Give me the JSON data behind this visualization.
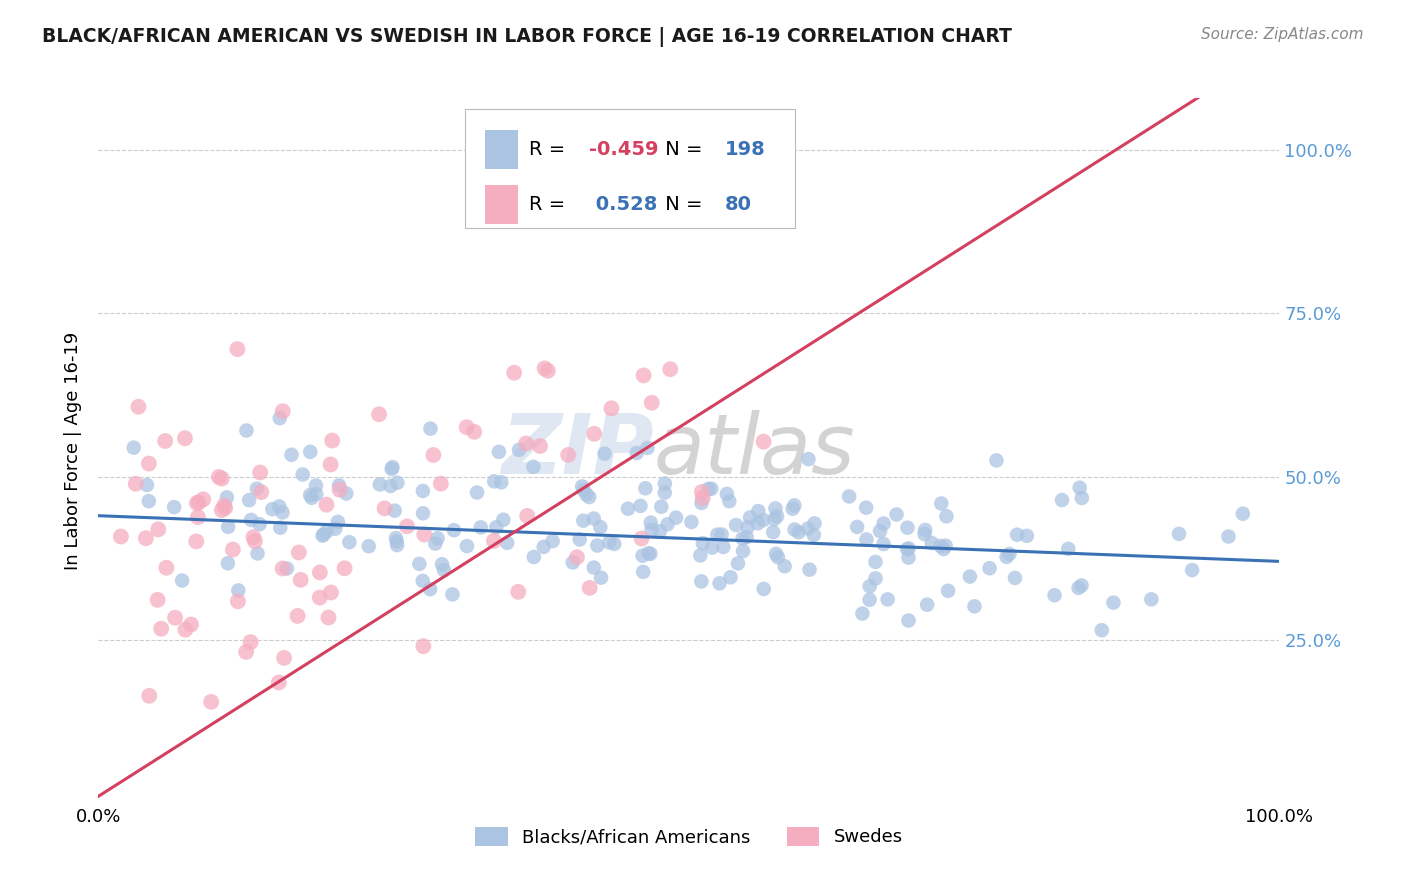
{
  "title": "BLACK/AFRICAN AMERICAN VS SWEDISH IN LABOR FORCE | AGE 16-19 CORRELATION CHART",
  "source": "Source: ZipAtlas.com",
  "ylabel": "In Labor Force | Age 16-19",
  "watermark_zip": "ZIP",
  "watermark_atlas": "atlas",
  "legend_r_blue": "-0.459",
  "legend_n_blue": "198",
  "legend_r_pink": "0.528",
  "legend_n_pink": "80",
  "legend_label_blue": "Blacks/African Americans",
  "legend_label_pink": "Swedes",
  "blue_color": "#aac4e2",
  "pink_color": "#f5adc0",
  "blue_line_color": "#3a72b5",
  "pink_line_color": "#d44060",
  "bg_color": "#ffffff",
  "grid_color": "#cccccc",
  "title_color": "#1a1a1a",
  "ytick_color": "#5b9bd5",
  "legend_text_color": "#3a72b5",
  "legend_r_neg_color": "#d44060",
  "n_blue": 198,
  "n_pink": 80,
  "r_blue": -0.459,
  "r_pink": 0.528,
  "blue_seed": 12,
  "pink_seed": 99
}
